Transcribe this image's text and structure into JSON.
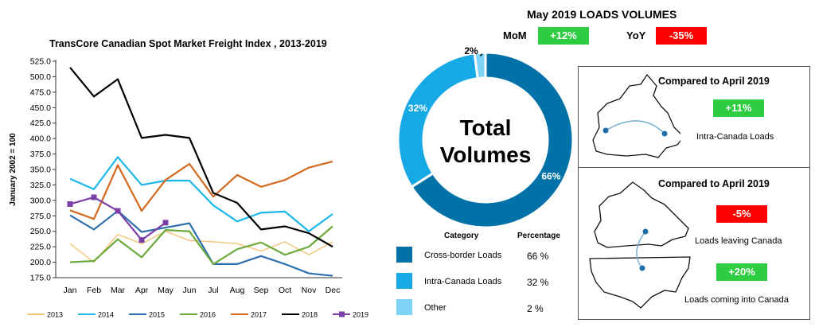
{
  "chart_data": [
    {
      "type": "line",
      "title": "TransCore Canadian Spot Market Freight Index , 2013-2019",
      "ylabel": "January  2002 = 100",
      "xlabel": "",
      "categories": [
        "Jan",
        "Feb",
        "Mar",
        "Apr",
        "May",
        "Jun",
        "Jul",
        "Aug",
        "Sep",
        "Oct",
        "Nov",
        "Dec"
      ],
      "ylim": [
        175,
        525
      ],
      "yticks": [
        "525.0",
        "500.0",
        "475.0",
        "450.0",
        "425.0",
        "400.0",
        "375.0",
        "350.0",
        "325.0",
        "300.0",
        "275.0",
        "250.0",
        "225.0",
        "200.0",
        "175.0"
      ],
      "legend_position": "bottom",
      "series": [
        {
          "name": "2013",
          "color": "#f5c77e",
          "values": [
            230,
            200,
            245,
            230,
            250,
            235,
            233,
            230,
            218,
            233,
            212,
            233
          ]
        },
        {
          "name": "2014",
          "color": "#1ab7ea",
          "values": [
            335,
            318,
            370,
            325,
            332,
            332,
            292,
            266,
            280,
            282,
            250,
            278
          ]
        },
        {
          "name": "2015",
          "color": "#2e6fae",
          "values": [
            276,
            253,
            283,
            249,
            256,
            263,
            197,
            197,
            210,
            197,
            182,
            178
          ]
        },
        {
          "name": "2016",
          "color": "#6aaa3a",
          "values": [
            200,
            202,
            237,
            208,
            252,
            250,
            197,
            221,
            232,
            212,
            225,
            258
          ]
        },
        {
          "name": "2017",
          "color": "#d2691e",
          "values": [
            284,
            270,
            357,
            283,
            333,
            359,
            306,
            341,
            322,
            333,
            353,
            363
          ]
        },
        {
          "name": "2018",
          "color": "#000000",
          "values": [
            515,
            468,
            496,
            401,
            406,
            401,
            312,
            296,
            253,
            258,
            247,
            225
          ]
        },
        {
          "name": "2019",
          "color": "#7b3fa8",
          "values": [
            294,
            305,
            283,
            236,
            264,
            null,
            null,
            null,
            null,
            null,
            null,
            null
          ]
        }
      ]
    },
    {
      "type": "pie",
      "title": "May 2019 LOADS VOLUMES",
      "center_label_line1": "Total",
      "center_label_line2": "Volumes",
      "slices": [
        {
          "label": "Cross-border Loads",
          "value": 66,
          "display": "66%",
          "table_display": "66 %",
          "color": "#0072a8"
        },
        {
          "label": "Intra-Canada Loads",
          "value": 32,
          "display": "32%",
          "table_display": "32 %",
          "color": "#16a9e6"
        },
        {
          "label": "Other",
          "value": 2,
          "display": "2%",
          "table_display": "2 %",
          "color": "#7fd3f5"
        }
      ],
      "table_headers": {
        "category": "Category",
        "percentage": "Percentage"
      }
    }
  ],
  "header": {
    "mom_label": "MoM",
    "mom_value": "+12%",
    "yoy_label": "YoY",
    "yoy_value": "-35%"
  },
  "panels": [
    {
      "title": "Compared to April 2019",
      "items": [
        {
          "badge": "+11%",
          "badge_color": "#2ecc40",
          "label": "Intra-Canada Loads"
        }
      ]
    },
    {
      "title": "Compared to April 2019",
      "items": [
        {
          "badge": "-5%",
          "badge_color": "#ff0000",
          "label": "Loads leaving Canada"
        },
        {
          "badge": "+20%",
          "badge_color": "#2ecc40",
          "label": "Loads coming into Canada"
        }
      ]
    }
  ]
}
